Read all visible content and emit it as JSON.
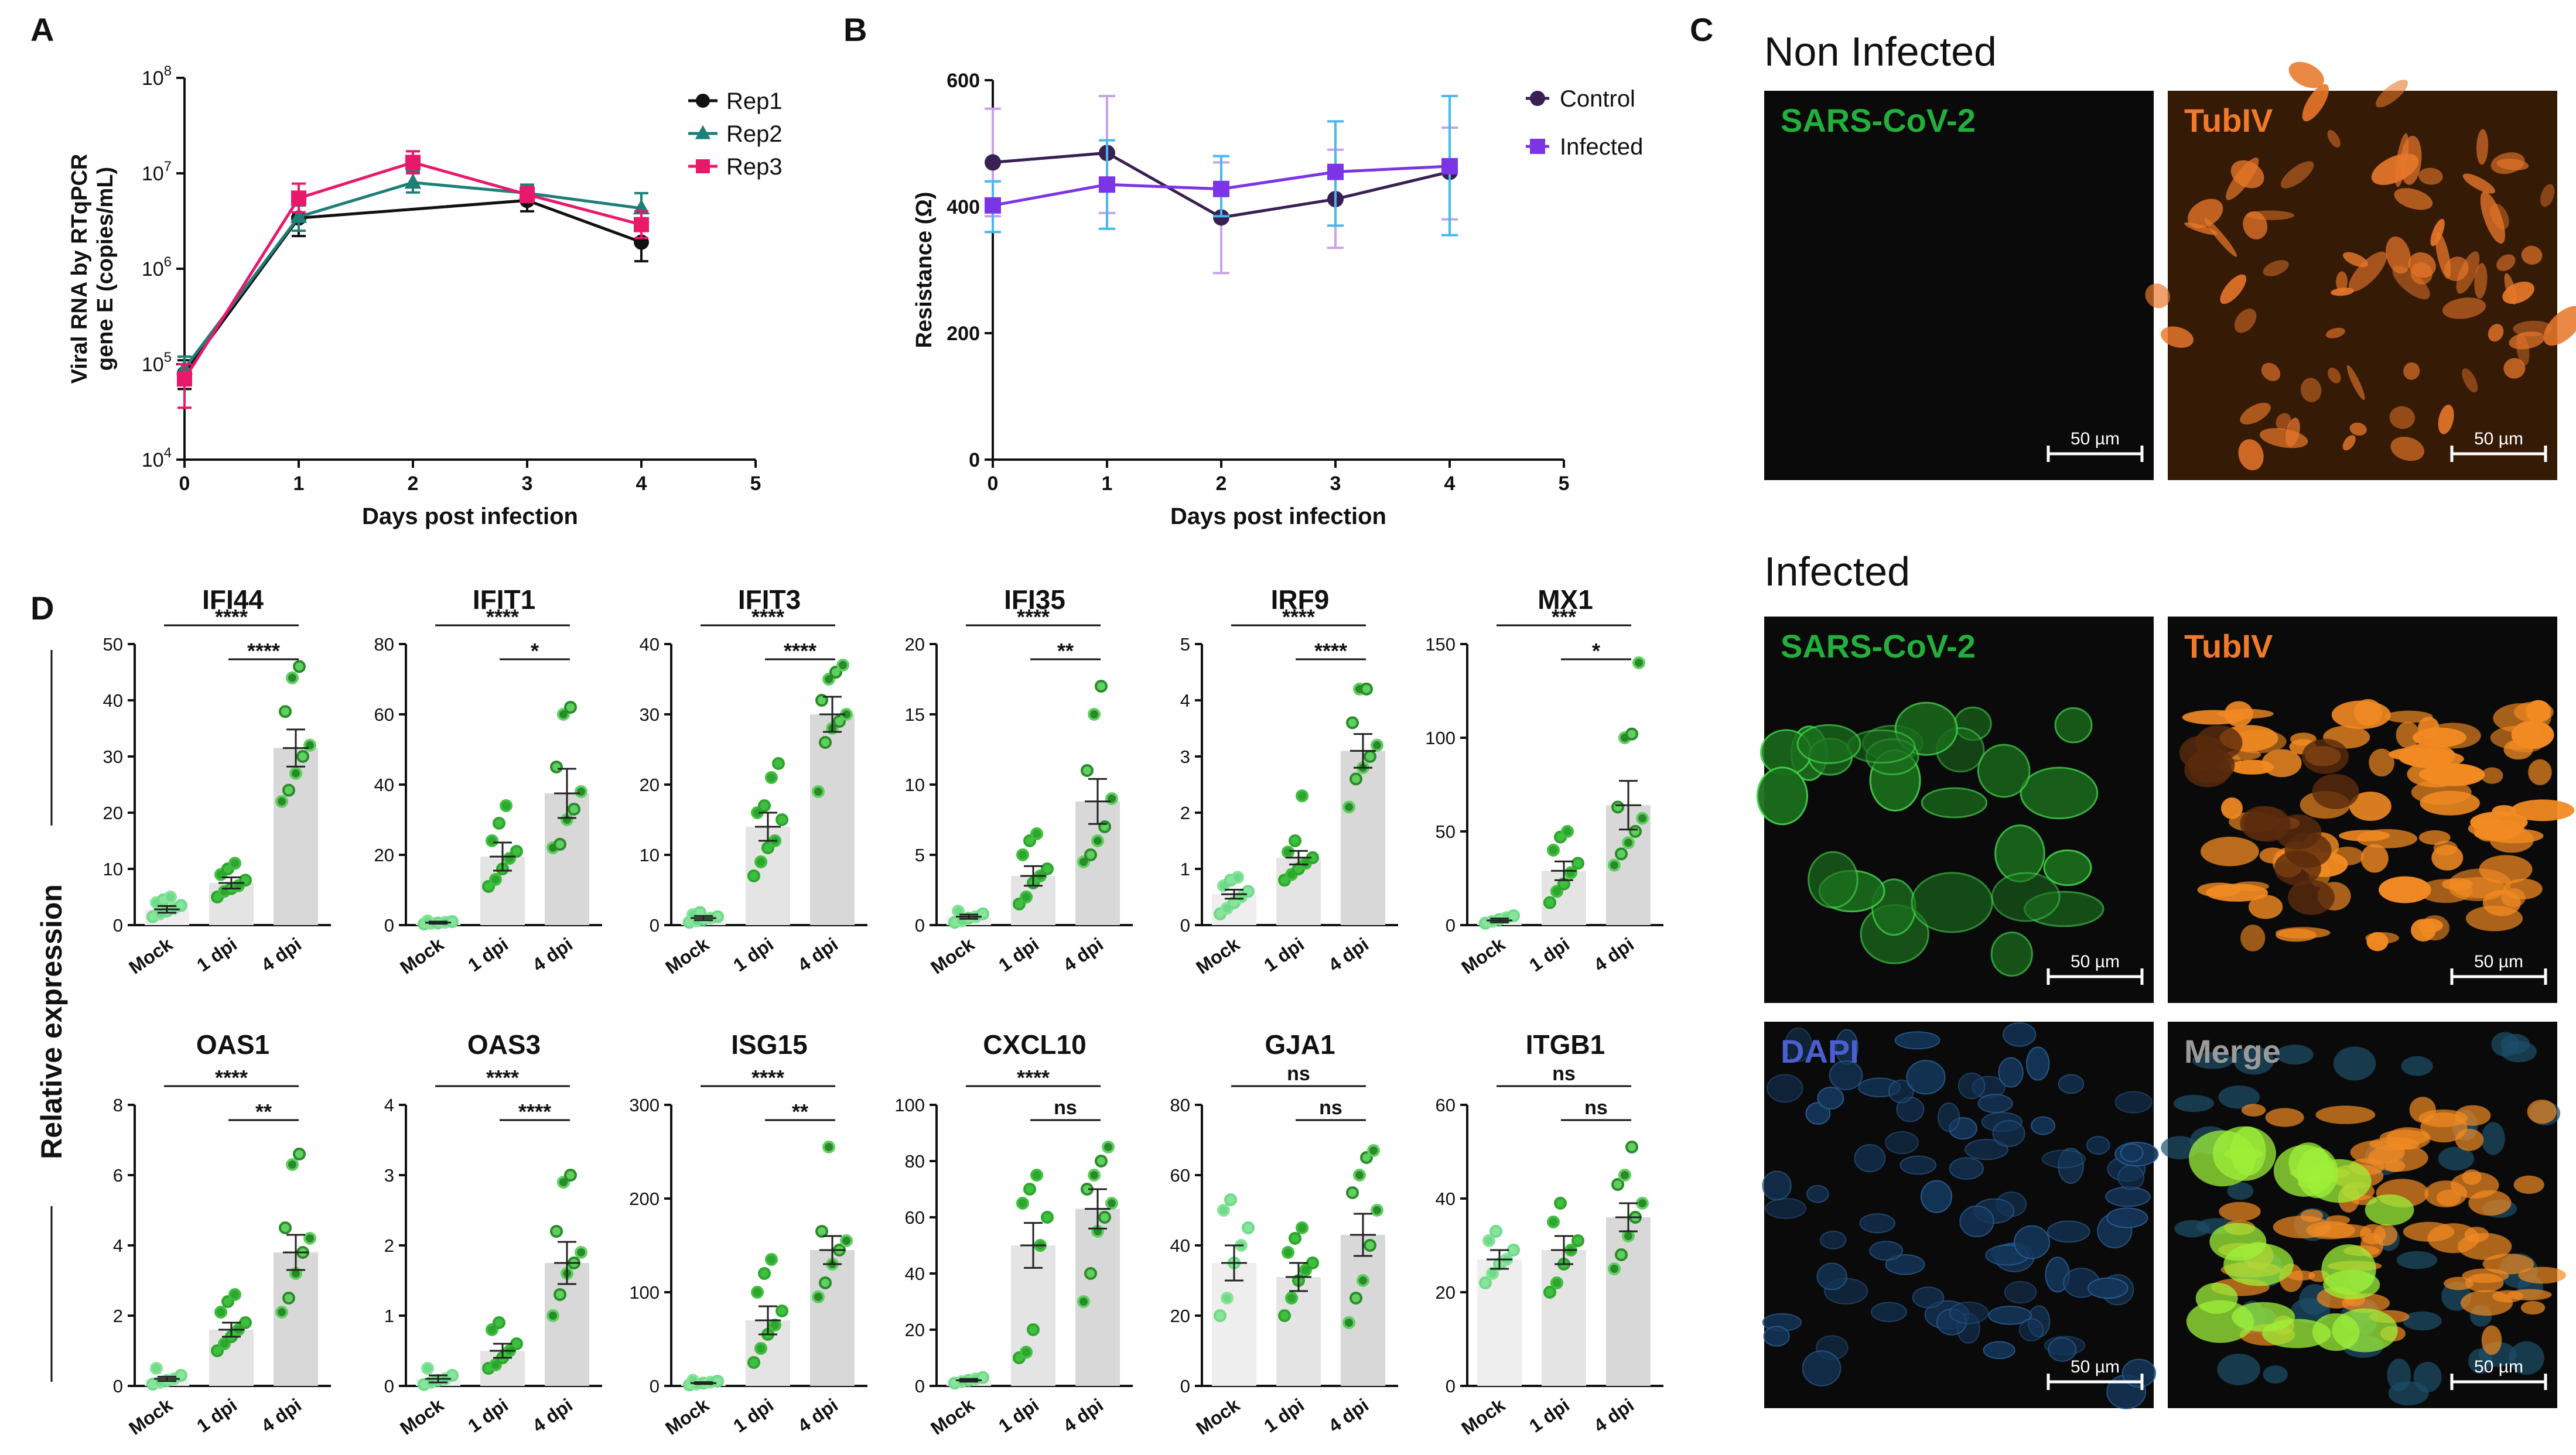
{
  "figure": {
    "panel_labels": [
      "A",
      "B",
      "C",
      "D"
    ],
    "colors": {
      "black": "#111111",
      "teal": "#1d7f78",
      "pink": "#e8186a",
      "control": "#3a1f52",
      "infected": "#7b35e6",
      "control_err": "#c9a2e6",
      "infected_err": "#47b7f0",
      "bar": "#d8d8d8",
      "bar_mock": "#eeeeee",
      "bar_1dpi": "#e4e4e4",
      "green_dark": "#2a8a2a",
      "green": "#3fbf3f",
      "green_light": "#88e49a",
      "bg_dark": "#0a0a0a"
    }
  },
  "chart_data": [
    {
      "id": "A",
      "type": "line",
      "yscale": "log",
      "xlabel": "Days post infection",
      "ylabel_lines": [
        "Viral RNA by RTqPCR",
        "gene E (copies/mL)"
      ],
      "xlim": [
        0,
        5
      ],
      "ylim": [
        10000,
        100000000
      ],
      "xticks": [
        "0",
        "1",
        "2",
        "3",
        "4",
        "5"
      ],
      "yticks": [
        {
          "base": "10",
          "exp": "4"
        },
        {
          "base": "10",
          "exp": "5"
        },
        {
          "base": "10",
          "exp": "6"
        },
        {
          "base": "10",
          "exp": "7"
        },
        {
          "base": "10",
          "exp": "8"
        }
      ],
      "series": [
        {
          "name": "Rep1",
          "color": "#111111",
          "marker": "circle",
          "x": [
            0,
            1,
            3,
            4
          ],
          "y": [
            80000,
            3400000,
            5200000,
            1900000
          ],
          "err_lo": [
            55000,
            2200000,
            4000000,
            1200000
          ],
          "err_hi": [
            110000,
            4600000,
            6800000,
            2700000
          ]
        },
        {
          "name": "Rep2",
          "color": "#1d7f78",
          "marker": "triangle",
          "x": [
            0,
            1,
            2,
            3,
            4
          ],
          "y": [
            90000,
            3500000,
            8000000,
            6200000,
            4300000
          ],
          "err_lo": [
            70000,
            2500000,
            6300000,
            5200000,
            3000000
          ],
          "err_hi": [
            120000,
            4600000,
            10500000,
            7600000,
            6200000
          ]
        },
        {
          "name": "Rep3",
          "color": "#e8186a",
          "marker": "square",
          "x": [
            0,
            1,
            2,
            3,
            4
          ],
          "y": [
            70000,
            5500000,
            13000000,
            6000000,
            2900000
          ],
          "err_lo": [
            35000,
            3900000,
            10000000,
            5000000,
            2100000
          ],
          "err_hi": [
            100000,
            7800000,
            17000000,
            7200000,
            4000000
          ]
        }
      ]
    },
    {
      "id": "B",
      "type": "line",
      "xlabel": "Days post infection",
      "ylabel": "Resistance (Ω)",
      "xlim": [
        0,
        5
      ],
      "ylim": [
        0,
        600
      ],
      "xticks": [
        "0",
        "1",
        "2",
        "3",
        "4",
        "5"
      ],
      "yticks": [
        "0",
        "200",
        "400",
        "600"
      ],
      "series": [
        {
          "name": "Control",
          "color": "#3a1f52",
          "err_color": "#c9a2e6",
          "marker": "circle",
          "x": [
            0,
            1,
            2,
            3,
            4
          ],
          "y": [
            470,
            485,
            383,
            412,
            455
          ],
          "err_lo": [
            385,
            390,
            295,
            335,
            380
          ],
          "err_hi": [
            555,
            575,
            470,
            490,
            525
          ]
        },
        {
          "name": "Infected",
          "color": "#7b35e6",
          "err_color": "#47b7f0",
          "marker": "square",
          "x": [
            0,
            1,
            2,
            3,
            4
          ],
          "y": [
            402,
            435,
            428,
            455,
            464
          ],
          "err_lo": [
            360,
            365,
            385,
            370,
            355
          ],
          "err_hi": [
            440,
            505,
            480,
            535,
            575
          ]
        }
      ]
    },
    {
      "id": "D-IFI44",
      "type": "bar",
      "title": "IFI44",
      "categories": [
        "Mock",
        "1 dpi",
        "4 dpi"
      ],
      "ylim": [
        0,
        50
      ],
      "yticks": [
        "0",
        "10",
        "20",
        "30",
        "40",
        "50"
      ],
      "values": [
        2.8,
        7.5,
        31.5
      ],
      "sem": [
        0.6,
        1.0,
        3.3
      ],
      "points": [
        [
          1.5,
          2,
          2.5,
          3,
          3.5,
          4,
          4.5,
          5
        ],
        [
          5,
          6,
          6.5,
          7,
          8,
          9,
          10,
          11
        ],
        [
          22,
          24,
          27,
          30,
          32,
          38,
          44,
          46
        ]
      ],
      "sig": [
        {
          "from": 0,
          "to": 2,
          "label": "****"
        },
        {
          "from": 1,
          "to": 2,
          "label": "****"
        }
      ]
    },
    {
      "id": "D-IFIT1",
      "type": "bar",
      "title": "IFIT1",
      "categories": [
        "Mock",
        "1 dpi",
        "4 dpi"
      ],
      "ylim": [
        0,
        80
      ],
      "yticks": [
        "0",
        "20",
        "40",
        "60",
        "80"
      ],
      "values": [
        0.7,
        19.5,
        37.5
      ],
      "sem": [
        0.3,
        4.0,
        7.0
      ],
      "points": [
        [
          0.3,
          0.5,
          0.6,
          0.8,
          1,
          1.2
        ],
        [
          11,
          13,
          16,
          19,
          21,
          24,
          29,
          34
        ],
        [
          22,
          23,
          30,
          33,
          38,
          45,
          60,
          62
        ]
      ],
      "sig": [
        {
          "from": 0,
          "to": 2,
          "label": "****"
        },
        {
          "from": 1,
          "to": 2,
          "label": "*"
        }
      ]
    },
    {
      "id": "D-IFIT3",
      "type": "bar",
      "title": "IFIT3",
      "categories": [
        "Mock",
        "1 dpi",
        "4 dpi"
      ],
      "ylim": [
        0,
        40
      ],
      "yticks": [
        "0",
        "10",
        "20",
        "30",
        "40"
      ],
      "values": [
        1.0,
        14.0,
        30.0
      ],
      "sem": [
        0.3,
        2.0,
        2.5
      ],
      "points": [
        [
          0.4,
          0.6,
          0.8,
          1,
          1.2,
          1.5,
          1.8
        ],
        [
          7,
          9,
          11,
          12,
          15,
          16,
          17,
          21,
          23
        ],
        [
          19,
          26,
          28,
          29,
          30,
          32,
          35,
          36,
          37
        ]
      ],
      "sig": [
        {
          "from": 0,
          "to": 2,
          "label": "****"
        },
        {
          "from": 1,
          "to": 2,
          "label": "****"
        }
      ]
    },
    {
      "id": "D-IFI35",
      "type": "bar",
      "title": "IFI35",
      "categories": [
        "Mock",
        "1 dpi",
        "4 dpi"
      ],
      "ylim": [
        0,
        20
      ],
      "yticks": [
        "0",
        "5",
        "10",
        "15",
        "20"
      ],
      "values": [
        0.6,
        3.5,
        8.8
      ],
      "sem": [
        0.15,
        0.7,
        1.6
      ],
      "points": [
        [
          0.2,
          0.3,
          0.5,
          0.6,
          0.8,
          1.0
        ],
        [
          1.5,
          2,
          3,
          3.5,
          4,
          5,
          6,
          6.5
        ],
        [
          4.5,
          5,
          6,
          7,
          9,
          11,
          15,
          17
        ]
      ],
      "sig": [
        {
          "from": 0,
          "to": 2,
          "label": "****"
        },
        {
          "from": 1,
          "to": 2,
          "label": "**"
        }
      ]
    },
    {
      "id": "D-IRF9",
      "type": "bar",
      "title": "IRF9",
      "categories": [
        "Mock",
        "1 dpi",
        "4 dpi"
      ],
      "ylim": [
        0,
        5
      ],
      "yticks": [
        "0",
        "1",
        "2",
        "3",
        "4",
        "5"
      ],
      "values": [
        0.55,
        1.2,
        3.1
      ],
      "sem": [
        0.08,
        0.12,
        0.3
      ],
      "points": [
        [
          0.2,
          0.3,
          0.4,
          0.5,
          0.6,
          0.7,
          0.8,
          0.85
        ],
        [
          0.8,
          0.9,
          1.0,
          1.1,
          1.2,
          1.3,
          1.5,
          2.3
        ],
        [
          2.1,
          2.6,
          2.8,
          3.0,
          3.2,
          3.6,
          4.2,
          4.2
        ]
      ],
      "sig": [
        {
          "from": 0,
          "to": 2,
          "label": "****"
        },
        {
          "from": 1,
          "to": 2,
          "label": "****"
        }
      ]
    },
    {
      "id": "D-MX1",
      "type": "bar",
      "title": "MX1",
      "categories": [
        "Mock",
        "1 dpi",
        "4 dpi"
      ],
      "ylim": [
        0,
        150
      ],
      "yticks": [
        "0",
        "50",
        "100",
        "150"
      ],
      "values": [
        2.5,
        29,
        64
      ],
      "sem": [
        1.0,
        5.0,
        13.0
      ],
      "points": [
        [
          1,
          2,
          3,
          4,
          5
        ],
        [
          12,
          18,
          22,
          28,
          33,
          40,
          47,
          50
        ],
        [
          32,
          38,
          44,
          50,
          57,
          63,
          100,
          102,
          140
        ]
      ],
      "sig": [
        {
          "from": 0,
          "to": 2,
          "label": "***"
        },
        {
          "from": 1,
          "to": 2,
          "label": "*"
        }
      ]
    },
    {
      "id": "D-OAS1",
      "type": "bar",
      "title": "OAS1",
      "categories": [
        "Mock",
        "1 dpi",
        "4 dpi"
      ],
      "ylim": [
        0,
        8
      ],
      "yticks": [
        "0",
        "2",
        "4",
        "6",
        "8"
      ],
      "values": [
        0.2,
        1.6,
        3.8
      ],
      "sem": [
        0.06,
        0.2,
        0.5
      ],
      "points": [
        [
          0.05,
          0.1,
          0.15,
          0.2,
          0.3,
          0.5
        ],
        [
          1.0,
          1.2,
          1.4,
          1.6,
          1.8,
          2.1,
          2.4,
          2.6
        ],
        [
          2.1,
          2.5,
          3.2,
          3.8,
          4.2,
          4.5,
          6.3,
          6.6
        ]
      ],
      "sig": [
        {
          "from": 0,
          "to": 2,
          "label": "****"
        },
        {
          "from": 1,
          "to": 2,
          "label": "**"
        }
      ]
    },
    {
      "id": "D-OAS3",
      "type": "bar",
      "title": "OAS3",
      "categories": [
        "Mock",
        "1 dpi",
        "4 dpi"
      ],
      "ylim": [
        0,
        4
      ],
      "yticks": [
        "0",
        "1",
        "2",
        "3",
        "4"
      ],
      "values": [
        0.1,
        0.5,
        1.75
      ],
      "sem": [
        0.05,
        0.1,
        0.3
      ],
      "points": [
        [
          0.02,
          0.05,
          0.08,
          0.1,
          0.15,
          0.25
        ],
        [
          0.25,
          0.3,
          0.4,
          0.5,
          0.6,
          0.8,
          0.9
        ],
        [
          1.0,
          1.3,
          1.6,
          1.75,
          1.9,
          2.2,
          2.9,
          3.0
        ]
      ],
      "sig": [
        {
          "from": 0,
          "to": 2,
          "label": "****"
        },
        {
          "from": 1,
          "to": 2,
          "label": "****"
        }
      ]
    },
    {
      "id": "D-ISG15",
      "type": "bar",
      "title": "ISG15",
      "categories": [
        "Mock",
        "1 dpi",
        "4 dpi"
      ],
      "ylim": [
        0,
        300
      ],
      "yticks": [
        "0",
        "100",
        "200",
        "300"
      ],
      "values": [
        3,
        70,
        145
      ],
      "sem": [
        1.0,
        15,
        15
      ],
      "points": [
        [
          1,
          2,
          3,
          4,
          5,
          6
        ],
        [
          25,
          40,
          55,
          65,
          80,
          100,
          120,
          135
        ],
        [
          95,
          110,
          130,
          145,
          155,
          165,
          255
        ]
      ],
      "sig": [
        {
          "from": 0,
          "to": 2,
          "label": "****"
        },
        {
          "from": 1,
          "to": 2,
          "label": "**"
        }
      ]
    },
    {
      "id": "D-CXCL10",
      "type": "bar",
      "title": "CXCL10",
      "categories": [
        "Mock",
        "1 dpi",
        "4 dpi"
      ],
      "ylim": [
        0,
        100
      ],
      "yticks": [
        "0",
        "20",
        "40",
        "60",
        "80",
        "100"
      ],
      "values": [
        2,
        50,
        63
      ],
      "sem": [
        0.5,
        8,
        7
      ],
      "points": [
        [
          1,
          1.5,
          2,
          2.5,
          3
        ],
        [
          10,
          12,
          20,
          50,
          60,
          65,
          70,
          75
        ],
        [
          30,
          40,
          55,
          60,
          65,
          70,
          75,
          80,
          85
        ]
      ],
      "sig": [
        {
          "from": 0,
          "to": 2,
          "label": "****"
        },
        {
          "from": 1,
          "to": 2,
          "label": "ns"
        }
      ]
    },
    {
      "id": "D-GJA1",
      "type": "bar",
      "title": "GJA1",
      "categories": [
        "Mock",
        "1 dpi",
        "4 dpi"
      ],
      "ylim": [
        0,
        80
      ],
      "yticks": [
        "0",
        "20",
        "40",
        "60",
        "80"
      ],
      "values": [
        35,
        31,
        43
      ],
      "sem": [
        5,
        4,
        6
      ],
      "points": [
        [
          20,
          25,
          35,
          40,
          45,
          50,
          53
        ],
        [
          20,
          25,
          30,
          33,
          35,
          38,
          42,
          45
        ],
        [
          18,
          25,
          30,
          40,
          50,
          55,
          60,
          65,
          67
        ]
      ],
      "sig": [
        {
          "from": 0,
          "to": 2,
          "label": "ns"
        },
        {
          "from": 1,
          "to": 2,
          "label": "ns"
        }
      ]
    },
    {
      "id": "D-ITGB1",
      "type": "bar",
      "title": "ITGB1",
      "categories": [
        "Mock",
        "1 dpi",
        "4 dpi"
      ],
      "ylim": [
        0,
        60
      ],
      "yticks": [
        "0",
        "20",
        "40",
        "60"
      ],
      "values": [
        27,
        29,
        36
      ],
      "sem": [
        2,
        3,
        3
      ],
      "points": [
        [
          22,
          24,
          26,
          27,
          29,
          31,
          33
        ],
        [
          20,
          22,
          26,
          29,
          31,
          35,
          39
        ],
        [
          25,
          28,
          32,
          36,
          39,
          43,
          45,
          51
        ]
      ],
      "sig": [
        {
          "from": 0,
          "to": 2,
          "label": "ns"
        },
        {
          "from": 1,
          "to": 2,
          "label": "ns"
        }
      ]
    }
  ],
  "panel_d": {
    "ylabel": "Relative expression"
  },
  "panel_c": {
    "headers": [
      "Non Infected",
      "Infected"
    ],
    "tiles": [
      {
        "label": "SARS-CoV-2",
        "scale": "50 µm",
        "label_color": "#22b03a"
      },
      {
        "label": "TubIV",
        "scale": "50 µm",
        "label_color": "#f07a2a"
      },
      {
        "label": "SARS-CoV-2",
        "scale": "50 µm",
        "label_color": "#22b03a"
      },
      {
        "label": "TubIV",
        "scale": "50 µm",
        "label_color": "#f07a2a"
      },
      {
        "label": "DAPI",
        "scale": "50 µm",
        "label_color": "#4a5fd0"
      },
      {
        "label": "Merge",
        "scale": "50 µm",
        "label_color": "#9a9a9a"
      }
    ]
  }
}
